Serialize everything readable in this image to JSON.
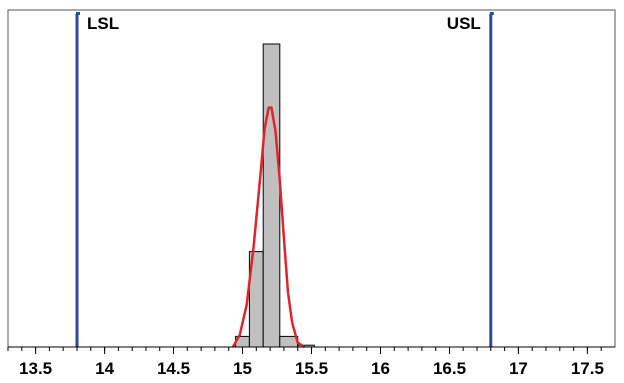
{
  "chart_data": {
    "type": "histogram",
    "xlim": [
      13.3,
      17.7
    ],
    "ylim": [
      0,
      1.0
    ],
    "x_ticks": [
      "13.5",
      "14",
      "14.5",
      "15",
      "15.5",
      "16",
      "16.5",
      "17",
      "17.5"
    ],
    "grid": false,
    "bins": [
      {
        "x0": 14.95,
        "x1": 15.05,
        "value": 0.035
      },
      {
        "x0": 15.05,
        "x1": 15.15,
        "value": 0.315
      },
      {
        "x0": 15.15,
        "x1": 15.27,
        "value": 1.0
      },
      {
        "x0": 15.27,
        "x1": 15.4,
        "value": 0.035
      },
      {
        "x0": 15.4,
        "x1": 15.52,
        "value": 0.006
      }
    ],
    "density_curve": {
      "color": "#e0242b",
      "x": [
        14.93,
        14.98,
        15.03,
        15.08,
        15.13,
        15.16,
        15.19,
        15.21,
        15.24,
        15.27,
        15.3,
        15.33,
        15.36,
        15.4,
        15.45
      ],
      "y": [
        0.0,
        0.04,
        0.14,
        0.33,
        0.57,
        0.72,
        0.79,
        0.79,
        0.71,
        0.55,
        0.36,
        0.18,
        0.08,
        0.015,
        0.0
      ]
    },
    "spec_limits": [
      {
        "label": "LSL",
        "value": 13.8,
        "color": "#2b4aa0"
      },
      {
        "label": "USL",
        "value": 16.8,
        "color": "#2b4aa0"
      }
    ],
    "bar_fill": "#c0c0c0",
    "bar_stroke": "#000000"
  }
}
